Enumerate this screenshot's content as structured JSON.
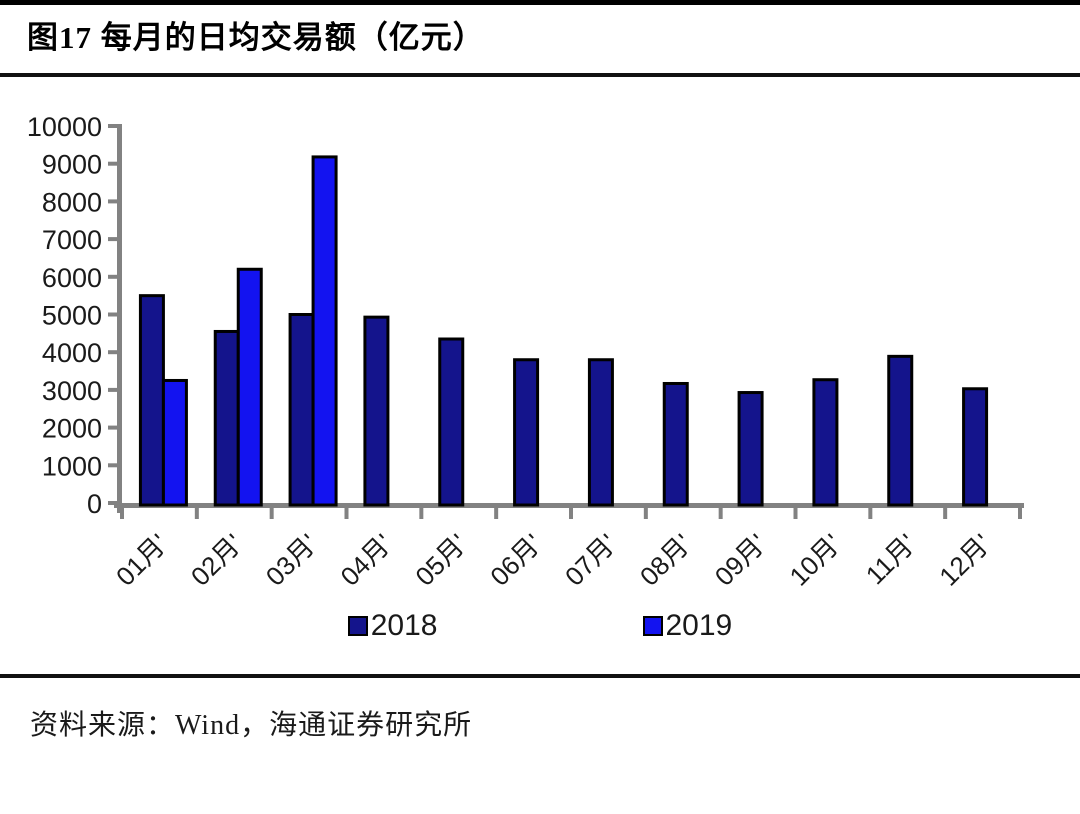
{
  "figure": {
    "title": "图17 每月的日均交易额（亿元）",
    "source_note": "资料来源：Wind，海通证券研究所"
  },
  "chart_data": {
    "type": "bar",
    "title": "每月的日均交易额（亿元）",
    "xlabel": "",
    "ylabel": "",
    "categories": [
      "01月'",
      "02月'",
      "03月'",
      "04月'",
      "05月'",
      "06月'",
      "07月'",
      "08月'",
      "09月'",
      "10月'",
      "11月'",
      "12月'"
    ],
    "series": [
      {
        "name": "2018",
        "color": "#14148c",
        "values": [
          5500,
          4550,
          5000,
          4930,
          4350,
          3800,
          3800,
          3170,
          2930,
          3270,
          3890,
          3030
        ]
      },
      {
        "name": "2019",
        "color": "#1313f0",
        "values": [
          3250,
          6200,
          9180,
          null,
          null,
          null,
          null,
          null,
          null,
          null,
          null,
          null
        ]
      }
    ],
    "ylim": [
      0,
      10000
    ],
    "ytick_step": 1000,
    "grid": false,
    "legend_position": "bottom",
    "axis_color": "#828282",
    "tick_label_color": "#1a1a1a",
    "bar_border_color": "#000000"
  }
}
